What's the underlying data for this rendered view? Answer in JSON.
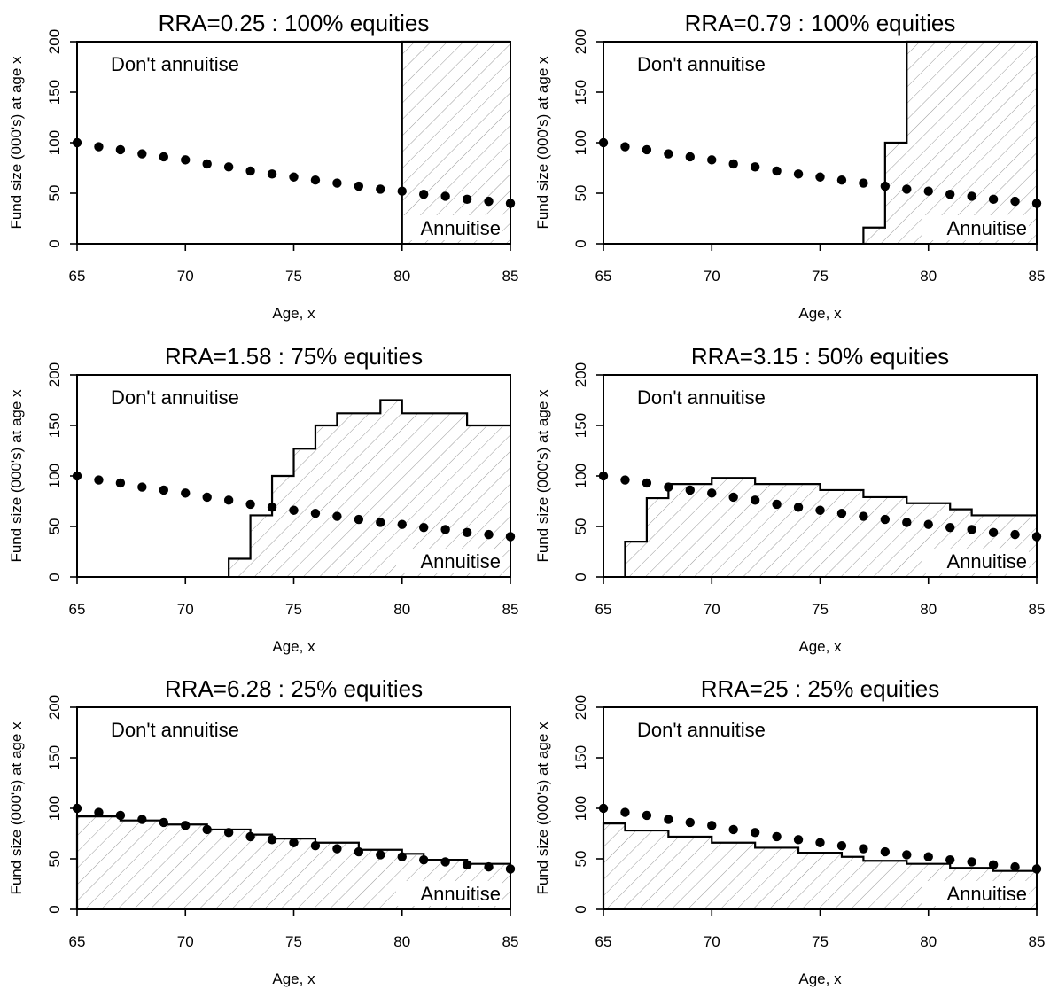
{
  "chart_data": [
    {
      "type": "line",
      "title": "RRA=0.25 : 100% equities",
      "xlabel": "Age, x",
      "ylabel": "Fund size (000's) at age x",
      "xlim": [
        65,
        85
      ],
      "ylim": [
        0,
        200
      ],
      "xticks": [
        65,
        70,
        75,
        80,
        85
      ],
      "yticks": [
        0,
        50,
        100,
        150,
        200
      ],
      "region_labels": {
        "upper": "Don't annuitise",
        "lower": "Annuitise"
      },
      "series": [
        {
          "style": "dots",
          "x": [
            65,
            66,
            67,
            68,
            69,
            70,
            71,
            72,
            73,
            74,
            75,
            76,
            77,
            78,
            79,
            80,
            81,
            82,
            83,
            84,
            85
          ],
          "y": [
            100,
            96,
            93,
            89,
            86,
            83,
            79,
            76,
            72,
            69,
            66,
            63,
            60,
            57,
            54,
            52,
            49,
            47,
            44,
            42,
            40
          ]
        },
        {
          "style": "step-boundary",
          "x": [
            80,
            80,
            85
          ],
          "y": [
            0,
            200,
            200
          ]
        }
      ]
    },
    {
      "type": "line",
      "title": "RRA=0.79 : 100% equities",
      "xlabel": "Age, x",
      "ylabel": "Fund size (000's) at age x",
      "xlim": [
        65,
        85
      ],
      "ylim": [
        0,
        200
      ],
      "xticks": [
        65,
        70,
        75,
        80,
        85
      ],
      "yticks": [
        0,
        50,
        100,
        150,
        200
      ],
      "region_labels": {
        "upper": "Don't annuitise",
        "lower": "Annuitise"
      },
      "series": [
        {
          "style": "dots",
          "x": [
            65,
            66,
            67,
            68,
            69,
            70,
            71,
            72,
            73,
            74,
            75,
            76,
            77,
            78,
            79,
            80,
            81,
            82,
            83,
            84,
            85
          ],
          "y": [
            100,
            96,
            93,
            89,
            86,
            83,
            79,
            76,
            72,
            69,
            66,
            63,
            60,
            57,
            54,
            52,
            49,
            47,
            44,
            42,
            40
          ]
        },
        {
          "style": "step-boundary",
          "x": [
            77,
            77,
            78,
            78,
            79,
            79,
            85
          ],
          "y": [
            0,
            16,
            16,
            100,
            100,
            200,
            200
          ]
        }
      ]
    },
    {
      "type": "line",
      "title": "RRA=1.58 : 75% equities",
      "xlabel": "Age, x",
      "ylabel": "Fund size (000's) at age x",
      "xlim": [
        65,
        85
      ],
      "ylim": [
        0,
        200
      ],
      "xticks": [
        65,
        70,
        75,
        80,
        85
      ],
      "yticks": [
        0,
        50,
        100,
        150,
        200
      ],
      "region_labels": {
        "upper": "Don't annuitise",
        "lower": "Annuitise"
      },
      "series": [
        {
          "style": "dots",
          "x": [
            65,
            66,
            67,
            68,
            69,
            70,
            71,
            72,
            73,
            74,
            75,
            76,
            77,
            78,
            79,
            80,
            81,
            82,
            83,
            84,
            85
          ],
          "y": [
            100,
            96,
            93,
            89,
            86,
            83,
            79,
            76,
            72,
            69,
            66,
            63,
            60,
            57,
            54,
            52,
            49,
            47,
            44,
            42,
            40
          ]
        },
        {
          "style": "step-boundary",
          "x": [
            72,
            72,
            73,
            73,
            74,
            74,
            75,
            75,
            76,
            76,
            77,
            77,
            79,
            79,
            80,
            80,
            83,
            83,
            85
          ],
          "y": [
            0,
            18,
            18,
            61,
            61,
            100,
            100,
            127,
            127,
            150,
            150,
            162,
            162,
            175,
            175,
            162,
            162,
            150,
            150
          ]
        }
      ]
    },
    {
      "type": "line",
      "title": "RRA=3.15 : 50% equities",
      "xlabel": "Age, x",
      "ylabel": "Fund size (000's) at age x",
      "xlim": [
        65,
        85
      ],
      "ylim": [
        0,
        200
      ],
      "xticks": [
        65,
        70,
        75,
        80,
        85
      ],
      "yticks": [
        0,
        50,
        100,
        150,
        200
      ],
      "region_labels": {
        "upper": "Don't annuitise",
        "lower": "Annuitise"
      },
      "series": [
        {
          "style": "dots",
          "x": [
            65,
            66,
            67,
            68,
            69,
            70,
            71,
            72,
            73,
            74,
            75,
            76,
            77,
            78,
            79,
            80,
            81,
            82,
            83,
            84,
            85
          ],
          "y": [
            100,
            96,
            93,
            89,
            86,
            83,
            79,
            76,
            72,
            69,
            66,
            63,
            60,
            57,
            54,
            52,
            49,
            47,
            44,
            42,
            40
          ]
        },
        {
          "style": "step-boundary",
          "x": [
            66,
            66,
            67,
            67,
            68,
            68,
            70,
            70,
            72,
            72,
            75,
            75,
            77,
            77,
            79,
            79,
            81,
            81,
            82,
            82,
            85
          ],
          "y": [
            0,
            35,
            35,
            78,
            78,
            92,
            92,
            98,
            98,
            92,
            92,
            86,
            86,
            79,
            79,
            73,
            73,
            67,
            67,
            61,
            61
          ]
        }
      ]
    },
    {
      "type": "line",
      "title": "RRA=6.28 : 25% equities",
      "xlabel": "Age, x",
      "ylabel": "Fund size (000's) at age x",
      "xlim": [
        65,
        85
      ],
      "ylim": [
        0,
        200
      ],
      "xticks": [
        65,
        70,
        75,
        80,
        85
      ],
      "yticks": [
        0,
        50,
        100,
        150,
        200
      ],
      "region_labels": {
        "upper": "Don't annuitise",
        "lower": "Annuitise"
      },
      "series": [
        {
          "style": "dots",
          "x": [
            65,
            66,
            67,
            68,
            69,
            70,
            71,
            72,
            73,
            74,
            75,
            76,
            77,
            78,
            79,
            80,
            81,
            82,
            83,
            84,
            85
          ],
          "y": [
            100,
            96,
            93,
            89,
            86,
            83,
            79,
            76,
            72,
            69,
            66,
            63,
            60,
            57,
            54,
            52,
            49,
            47,
            44,
            42,
            40
          ]
        },
        {
          "style": "step-boundary",
          "x": [
            65,
            65,
            67,
            67,
            69,
            69,
            71,
            71,
            73,
            73,
            74,
            74,
            76,
            76,
            78,
            78,
            80,
            80,
            81,
            81,
            83,
            83,
            85
          ],
          "y": [
            0,
            92,
            92,
            88,
            88,
            84,
            84,
            79,
            79,
            74,
            74,
            70,
            70,
            66,
            66,
            59,
            59,
            55,
            55,
            49,
            49,
            45,
            45
          ]
        }
      ]
    },
    {
      "type": "line",
      "title": "RRA=25 : 25% equities",
      "xlabel": "Age, x",
      "ylabel": "Fund size (000's) at age x",
      "xlim": [
        65,
        85
      ],
      "ylim": [
        0,
        200
      ],
      "xticks": [
        65,
        70,
        75,
        80,
        85
      ],
      "yticks": [
        0,
        50,
        100,
        150,
        200
      ],
      "region_labels": {
        "upper": "Don't annuitise",
        "lower": "Annuitise"
      },
      "series": [
        {
          "style": "dots",
          "x": [
            65,
            66,
            67,
            68,
            69,
            70,
            71,
            72,
            73,
            74,
            75,
            76,
            77,
            78,
            79,
            80,
            81,
            82,
            83,
            84,
            85
          ],
          "y": [
            100,
            96,
            93,
            89,
            86,
            83,
            79,
            76,
            72,
            69,
            66,
            63,
            60,
            57,
            54,
            52,
            49,
            47,
            44,
            42,
            40
          ]
        },
        {
          "style": "step-boundary",
          "x": [
            65,
            65,
            66,
            66,
            68,
            68,
            70,
            70,
            72,
            72,
            74,
            74,
            76,
            76,
            77,
            77,
            79,
            79,
            81,
            81,
            83,
            83,
            85
          ],
          "y": [
            0,
            85,
            85,
            78,
            78,
            72,
            72,
            66,
            66,
            61,
            61,
            56,
            56,
            52,
            52,
            48,
            48,
            45,
            45,
            41,
            41,
            38,
            38
          ]
        }
      ]
    }
  ]
}
